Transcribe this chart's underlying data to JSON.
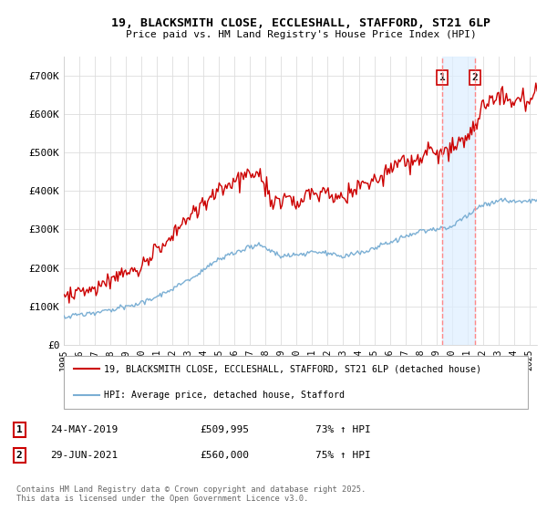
{
  "title_line1": "19, BLACKSMITH CLOSE, ECCLESHALL, STAFFORD, ST21 6LP",
  "title_line2": "Price paid vs. HM Land Registry's House Price Index (HPI)",
  "background_color": "#ffffff",
  "grid_color": "#dddddd",
  "red_color": "#cc0000",
  "blue_color": "#7bafd4",
  "dashed_color": "#ff8888",
  "shade_color": "#ddeeff",
  "sale1_x": 2019.39,
  "sale2_x": 2021.49,
  "sale1_price": 509995,
  "sale1_date": "24-MAY-2019",
  "sale1_hpi": "73% ↑ HPI",
  "sale2_price": 560000,
  "sale2_date": "29-JUN-2021",
  "sale2_hpi": "75% ↑ HPI",
  "legend_label_red": "19, BLACKSMITH CLOSE, ECCLESHALL, STAFFORD, ST21 6LP (detached house)",
  "legend_label_blue": "HPI: Average price, detached house, Stafford",
  "footer": "Contains HM Land Registry data © Crown copyright and database right 2025.\nThis data is licensed under the Open Government Licence v3.0.",
  "xmin": 1995,
  "xmax": 2025.5,
  "ymin": 0,
  "ymax": 750000,
  "yticks": [
    0,
    100000,
    200000,
    300000,
    400000,
    500000,
    600000,
    700000
  ],
  "yticklabels": [
    "£0",
    "£100K",
    "£200K",
    "£300K",
    "£400K",
    "£500K",
    "£600K",
    "£700K"
  ]
}
